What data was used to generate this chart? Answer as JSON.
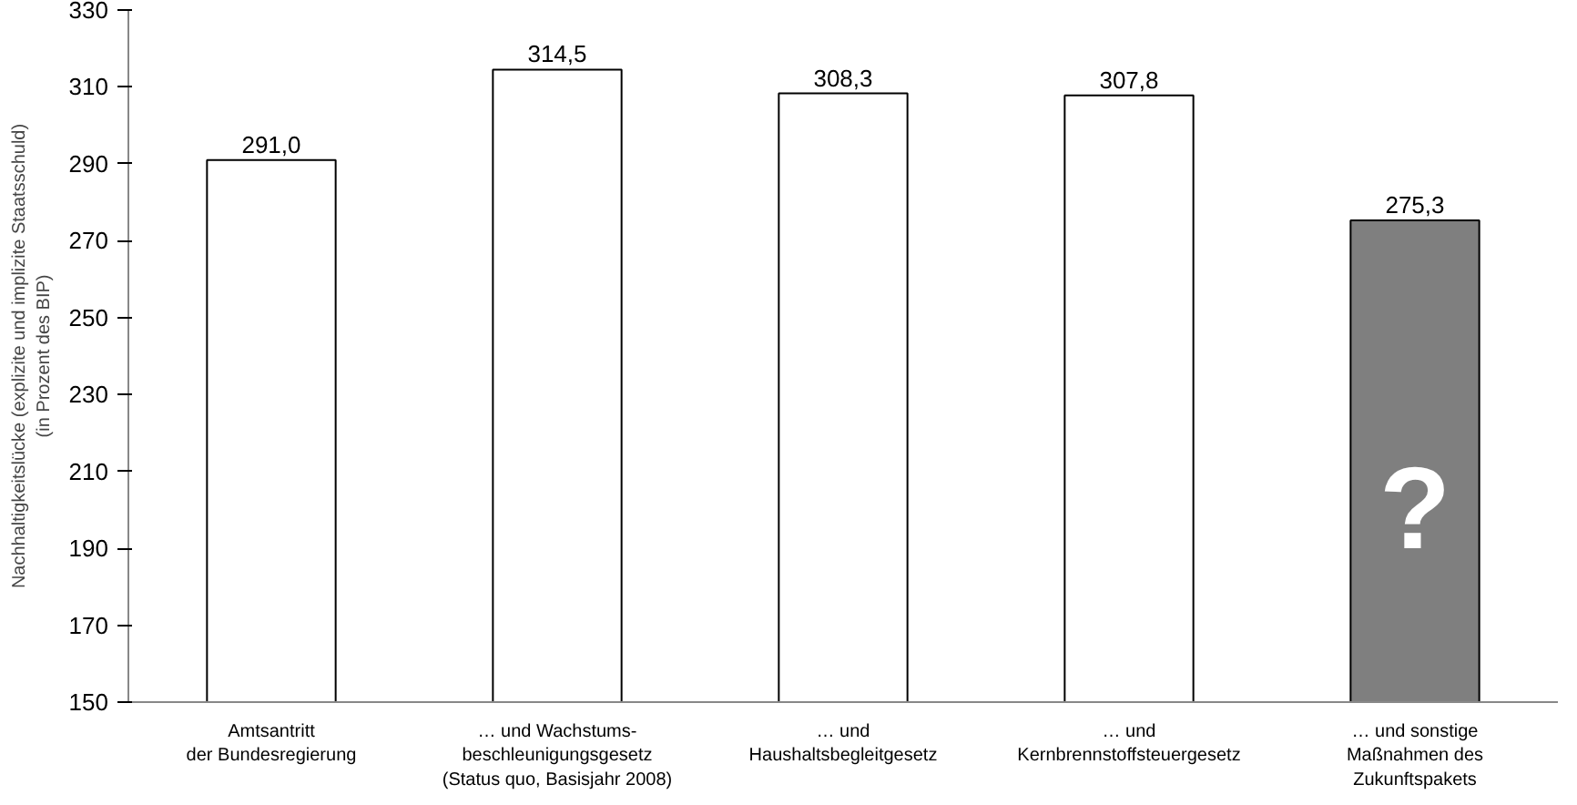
{
  "chart_data": {
    "type": "bar",
    "ylabel": "Nachhaltigkeitslücke (explizite und implizite Staatsschuld)\n(in Prozent des BIP)",
    "categories": [
      "Amtsantritt\nder Bundesregierung",
      "… und Wachstums-\nbeschleunigungsgesetz\n(Status quo, Basisjahr 2008)",
      "… und\nHaushaltsbegleitgesetz",
      "… und\nKernbrennstoffsteuergesetz",
      "… und sonstige\nMaßnahmen des\nZukunftspakets"
    ],
    "values": [
      291.0,
      314.5,
      308.3,
      307.8,
      275.3
    ],
    "value_labels": [
      "291,0",
      "314,5",
      "308,3",
      "307,8",
      "275,3"
    ],
    "colors": [
      "#ffffff",
      "#ffffff",
      "#ffffff",
      "#ffffff",
      "#7f7f7f"
    ],
    "ylim": [
      150,
      330
    ],
    "yticks": [
      150,
      170,
      190,
      210,
      230,
      250,
      270,
      290,
      310,
      330
    ],
    "annotations": [
      "?"
    ],
    "grid": false
  }
}
